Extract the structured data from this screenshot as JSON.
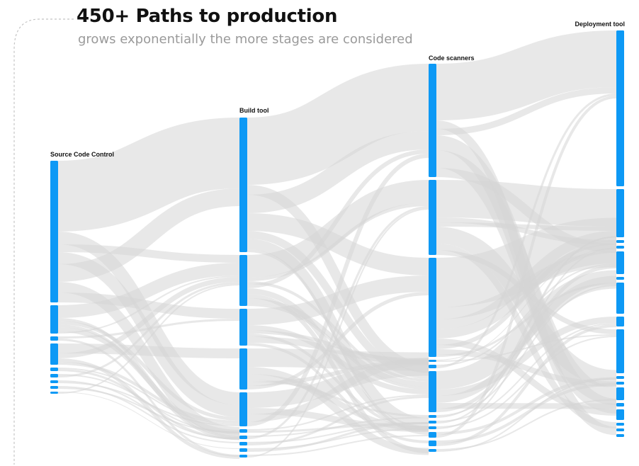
{
  "header": {
    "title": "450+ Paths to production",
    "subtitle": "grows exponentially the more stages are considered"
  },
  "colors": {
    "node": "#0d99f5",
    "link": "#d5d5d5",
    "title": "#111111",
    "subtitle": "#9a9a9a",
    "bracket": "#c4c4c4"
  },
  "chart_data": {
    "type": "sankey",
    "title": "450+ Paths to production",
    "subtitle": "grows exponentially the more stages are considered",
    "stages": [
      {
        "name": "Source Code Control",
        "node_values": [
          200,
          40,
          6,
          30,
          5,
          5,
          4,
          4,
          3
        ]
      },
      {
        "name": "Build tool",
        "node_values": [
          190,
          72,
          52,
          58,
          48,
          5,
          5,
          5,
          5,
          4
        ]
      },
      {
        "name": "Code scanners",
        "node_values": [
          160,
          106,
          140,
          3,
          5,
          58,
          4,
          4,
          4,
          8,
          8,
          4
        ]
      },
      {
        "name": "Deployment tool",
        "node_values": [
          220,
          68,
          4,
          4,
          32,
          4,
          44,
          14,
          62,
          4,
          4,
          18,
          5,
          15,
          4,
          4,
          4
        ]
      }
    ]
  }
}
